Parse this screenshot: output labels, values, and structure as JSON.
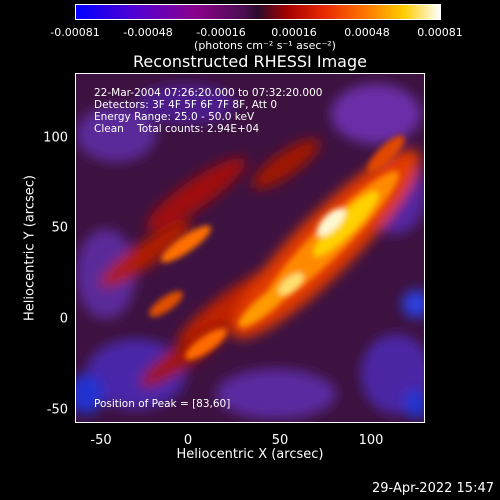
{
  "colorbar": {
    "tick_labels": [
      "-0.00081",
      "-0.00048",
      "-0.00016",
      "0.00016",
      "0.00048",
      "0.00081"
    ],
    "units": "(photons cm⁻² s⁻¹ asec⁻²)"
  },
  "plot": {
    "title": "Reconstructed RHESSI Image",
    "xlabel": "Heliocentric X (arcsec)",
    "ylabel": "Heliocentric Y (arcsec)",
    "x_ticks": [
      "-50",
      "0",
      "50",
      "100"
    ],
    "y_ticks": [
      "100",
      "50",
      "0",
      "-50"
    ]
  },
  "annotations": {
    "time_range": "22-Mar-2004 07:26:20.000 to 07:32:20.000",
    "detectors": "Detectors: 3F 4F 5F 6F 7F 8F, Att 0",
    "energy_range": "Energy Range: 25.0 - 50.0 keV",
    "method": "Clean    Total counts: 2.94E+04",
    "peak_position": "Position of Peak = [83,60]"
  },
  "footer": {
    "timestamp": "29-Apr-2022 15:47"
  },
  "colors": {
    "background": "#000000",
    "foreground": "#ffffff"
  }
}
